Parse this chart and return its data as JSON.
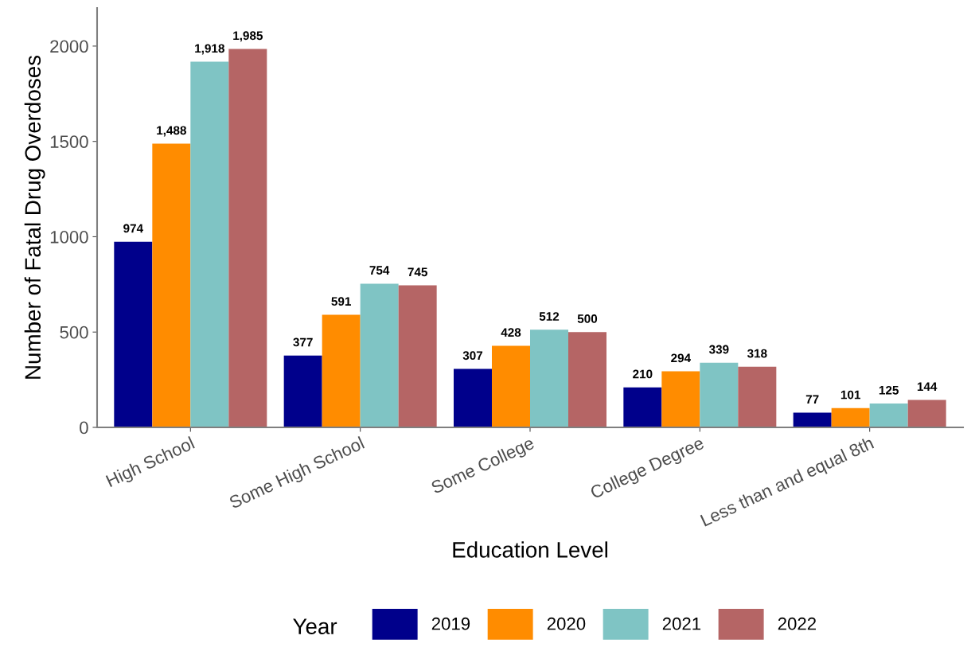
{
  "chart_data": {
    "type": "bar",
    "xlabel": "Education Level",
    "ylabel": "Number of Fatal Drug Overdoses",
    "legend_title": "Year",
    "categories": [
      "High School",
      "Some High School",
      "Some College",
      "College Degree",
      "Less than and equal 8th"
    ],
    "series": [
      {
        "name": "2019",
        "color": "#00008b",
        "values": [
          974,
          377,
          307,
          210,
          77
        ],
        "value_labels": [
          "974",
          "377",
          "307",
          "210",
          "77"
        ]
      },
      {
        "name": "2020",
        "color": "#ff8c00",
        "values": [
          1488,
          591,
          428,
          294,
          101
        ],
        "value_labels": [
          "1,488",
          "591",
          "428",
          "294",
          "101"
        ]
      },
      {
        "name": "2021",
        "color": "#7fc4c4",
        "values": [
          1918,
          754,
          512,
          339,
          125
        ],
        "value_labels": [
          "1,918",
          "754",
          "512",
          "339",
          "125"
        ]
      },
      {
        "name": "2022",
        "color": "#b56565",
        "values": [
          1985,
          745,
          500,
          318,
          144
        ],
        "value_labels": [
          "1,985",
          "745",
          "500",
          "318",
          "144"
        ]
      }
    ],
    "ylim": [
      0,
      2200
    ],
    "yticks": [
      0,
      500,
      1000,
      1500,
      2000
    ],
    "grid": false,
    "legend": "bottom"
  }
}
